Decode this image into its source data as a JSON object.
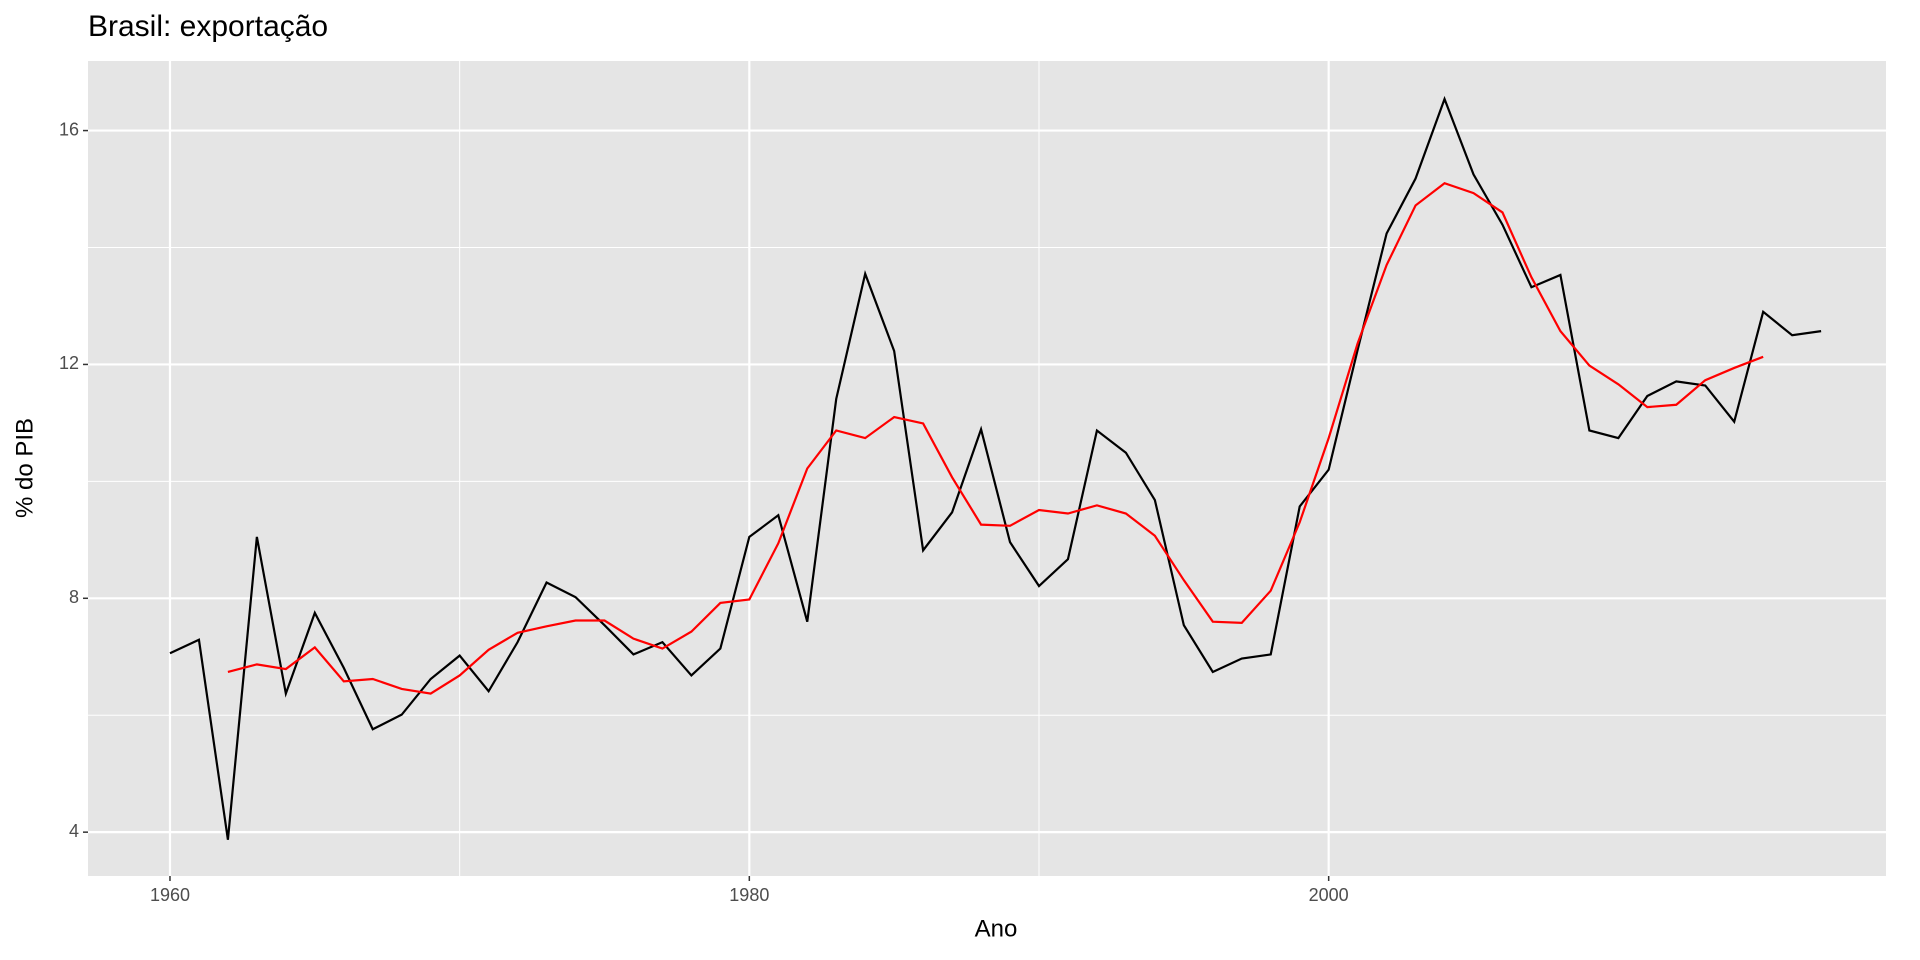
{
  "chart_data": {
    "type": "line",
    "title": "Brasil: exportação",
    "xlabel": "Ano",
    "ylabel": "% do PIB",
    "x": [
      1960,
      1961,
      1962,
      1963,
      1964,
      1965,
      1966,
      1967,
      1968,
      1969,
      1970,
      1971,
      1972,
      1973,
      1974,
      1975,
      1976,
      1977,
      1978,
      1979,
      1980,
      1981,
      1982,
      1983,
      1984,
      1985,
      1986,
      1987,
      1988,
      1989,
      1990,
      1991,
      1992,
      1993,
      1994,
      1995,
      1996,
      1997,
      1998,
      1999,
      2000,
      2001,
      2002,
      2003,
      2004,
      2005,
      2006,
      2007,
      2008,
      2009,
      2010,
      2011,
      2012,
      2013,
      2014,
      2015,
      2016,
      2017
    ],
    "series": [
      {
        "color": "#000000",
        "values": [
          7.06,
          7.29,
          3.87,
          9.05,
          6.37,
          7.75,
          6.81,
          5.76,
          6.01,
          6.62,
          7.02,
          6.41,
          7.25,
          8.27,
          8.02,
          7.54,
          7.04,
          7.25,
          6.68,
          7.14,
          9.05,
          9.42,
          7.6,
          11.41,
          13.55,
          12.23,
          8.82,
          9.47,
          10.89,
          8.96,
          8.21,
          8.67,
          10.87,
          10.49,
          9.68,
          7.54,
          6.74,
          6.97,
          7.04,
          9.57,
          10.2,
          12.25,
          14.24,
          15.18,
          16.54,
          15.25,
          14.39,
          13.32,
          13.53,
          10.87,
          10.74,
          11.46,
          11.71,
          11.64,
          11.02,
          12.9,
          12.5,
          12.57
        ]
      },
      {
        "color": "#ff0000",
        "values": [
          null,
          null,
          6.74,
          6.87,
          6.79,
          7.16,
          6.58,
          6.62,
          6.45,
          6.37,
          6.68,
          7.12,
          7.41,
          7.52,
          7.62,
          7.62,
          7.31,
          7.14,
          7.43,
          7.92,
          7.98,
          8.94,
          10.22,
          10.87,
          10.74,
          11.1,
          10.99,
          10.07,
          9.26,
          9.24,
          9.51,
          9.45,
          9.59,
          9.45,
          9.07,
          8.31,
          7.6,
          7.58,
          8.13,
          9.3,
          10.74,
          12.36,
          13.7,
          14.72,
          15.1,
          14.93,
          14.6,
          13.49,
          12.57,
          11.98,
          11.66,
          11.27,
          11.31,
          11.73,
          11.94,
          12.13,
          null,
          null
        ]
      }
    ],
    "xlim": [
      1957.17,
      2019.24
    ],
    "xticks": [
      1960,
      1980,
      2000
    ],
    "ylim": [
      3.25,
      17.19
    ],
    "yticks": [
      4,
      8,
      12,
      16
    ],
    "grid": true
  }
}
